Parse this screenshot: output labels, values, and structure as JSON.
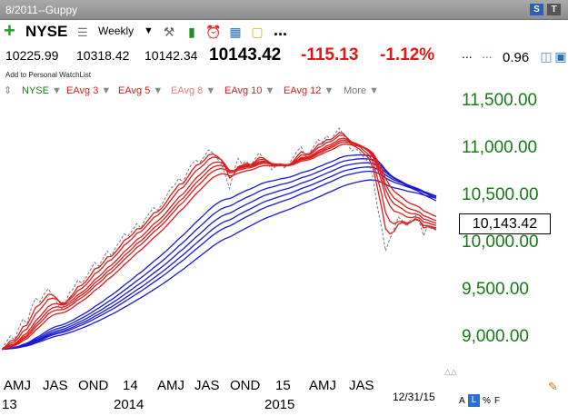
{
  "window": {
    "title": "8/2011--Guppy"
  },
  "toolbar": {
    "symbol": "NYSE",
    "period": "Weekly",
    "more": "...",
    "icons": [
      "add-icon",
      "list-icon",
      "tools-icon",
      "bar-chart-icon",
      "alarm-clock-icon",
      "calculator-icon",
      "note-icon"
    ]
  },
  "quote": {
    "open": "10225.99",
    "high": "10318.42",
    "low": "10142.34",
    "last": "10143.42",
    "change": "-115.13",
    "change_pct": "-1.12%",
    "extra_dots": "...",
    "value": "0.96"
  },
  "watchlist_link": "Add to Personal WatchList",
  "studies": [
    {
      "label": "NYSE",
      "color": "#187a18"
    },
    {
      "label": "EAvg 3",
      "color": "#d42020"
    },
    {
      "label": "EAvg 5",
      "color": "#d42020"
    },
    {
      "label": "EAvg 8",
      "color": "#e87c7c"
    },
    {
      "label": "EAvg 10",
      "color": "#d42020"
    },
    {
      "label": "EAvg 12",
      "color": "#d42020"
    },
    {
      "label": "More",
      "color": "#777777"
    }
  ],
  "chart_data": {
    "type": "line",
    "yticks": [
      "11,500.00",
      "11,000.00",
      "10,500.00",
      "10,000.00",
      "9,500.00",
      "9,000.00"
    ],
    "ylim": [
      8750,
      11700
    ],
    "last_price_label": "10,143.42",
    "x_month_labels": [
      "AMJ",
      "JAS",
      "OND",
      "14",
      "AMJ",
      "JAS",
      "OND",
      "15",
      "AMJ",
      "JAS"
    ],
    "x_year_labels": [
      "13",
      "2014",
      "2015"
    ],
    "end_date": "12/31/15",
    "colors": {
      "short": "#e01b1b",
      "long": "#1a1ad0",
      "price": "#777777"
    },
    "price_weekly": [
      8880,
      8950,
      9020,
      8980,
      9100,
      9200,
      9150,
      9320,
      9420,
      9380,
      9460,
      9520,
      9450,
      9380,
      9300,
      9360,
      9480,
      9520,
      9610,
      9580,
      9640,
      9720,
      9800,
      9760,
      9840,
      9920,
      9870,
      9960,
      10020,
      10100,
      10080,
      10140,
      10210,
      10160,
      10260,
      10320,
      10380,
      10350,
      10420,
      10500,
      10580,
      10620,
      10690,
      10640,
      10760,
      10840,
      10880,
      10860,
      10920,
      10990,
      10960,
      10900,
      10850,
      10720,
      10580,
      10760,
      10900,
      10840,
      10870,
      10820,
      10890,
      10960,
      10900,
      10840,
      10780,
      10820,
      10850,
      10800,
      10840,
      10900,
      10980,
      11020,
      10920,
      10960,
      11030,
      11100,
      11070,
      11140,
      11100,
      11160,
      11220,
      11150,
      11050,
      10980,
      11000,
      10960,
      10900,
      10860,
      10700,
      10400,
      10180,
      9920,
      10050,
      10150,
      10280,
      10240,
      10180,
      10250,
      10300,
      10230,
      10080,
      10190,
      10150,
      10143
    ]
  },
  "mode_buttons": [
    "A",
    "L",
    "%",
    "F"
  ]
}
